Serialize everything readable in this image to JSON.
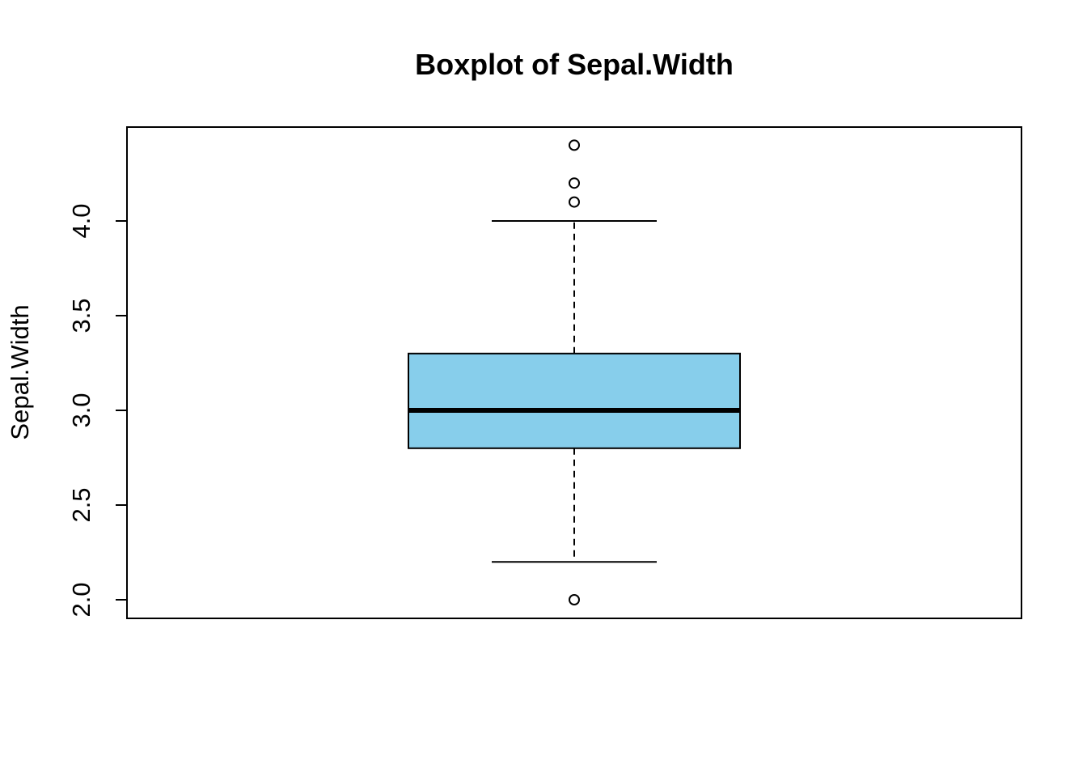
{
  "chart_data": {
    "type": "box",
    "title": "Boxplot of Sepal.Width",
    "xlabel": "",
    "ylabel": "Sepal.Width",
    "ylim": [
      1.95,
      4.5
    ],
    "y_ticks": [
      2.0,
      2.5,
      3.0,
      3.5,
      4.0
    ],
    "y_tick_labels": [
      "2.0",
      "2.5",
      "3.0",
      "3.5",
      "4.0"
    ],
    "grid": false,
    "box_color": "#87CEEB",
    "box": {
      "whisker_low": 2.2,
      "q1": 2.8,
      "median": 3.0,
      "q3": 3.3,
      "whisker_high": 4.0,
      "outliers": [
        4.4,
        4.2,
        4.1,
        2.0
      ]
    }
  }
}
